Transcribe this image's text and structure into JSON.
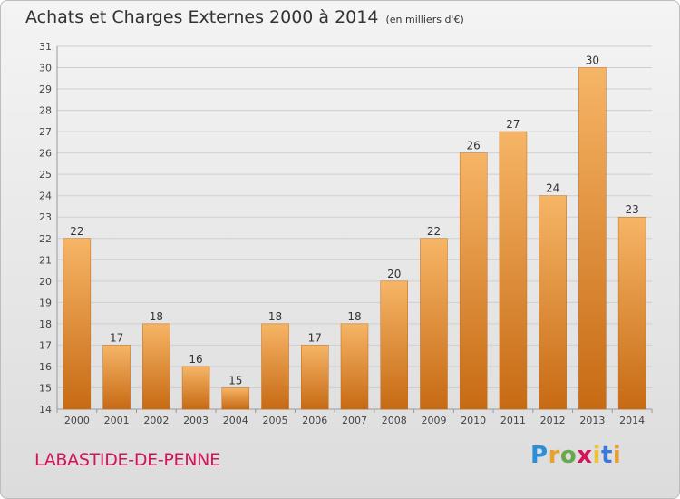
{
  "header": {
    "title": "Achats et Charges Externes 2000 à 2014",
    "unit": "(en milliers d'€)"
  },
  "commune": "LABASTIDE-DE-PENNE",
  "logo": {
    "letters": [
      "P",
      "r",
      "o",
      "x",
      "i",
      "t",
      "i"
    ],
    "colors": [
      "#2a8fd6",
      "#e8a12d",
      "#6aa84f",
      "#d4145a",
      "#f1c232",
      "#3c78d8",
      "#e8a12d"
    ]
  },
  "colors": {
    "bar": "#f09a3c",
    "bar_light": "#f6b566",
    "bar_dark": "#c76a14",
    "grid": "#cfcfcf",
    "commune": "#d4145a"
  },
  "chart_data": {
    "type": "bar",
    "title": "Achats et Charges Externes 2000 à 2014",
    "subtitle": "(en milliers d'€)",
    "categories": [
      "2000",
      "2001",
      "2002",
      "2003",
      "2004",
      "2005",
      "2006",
      "2007",
      "2008",
      "2009",
      "2010",
      "2011",
      "2012",
      "2013",
      "2014"
    ],
    "values": [
      22,
      17,
      18,
      16,
      15,
      18,
      17,
      18,
      20,
      22,
      26,
      27,
      24,
      30,
      23
    ],
    "ylim": [
      14,
      31
    ],
    "yticks": [
      14,
      15,
      16,
      17,
      18,
      19,
      20,
      21,
      22,
      23,
      24,
      25,
      26,
      27,
      28,
      29,
      30,
      31
    ],
    "grid": true,
    "data_labels": true
  }
}
